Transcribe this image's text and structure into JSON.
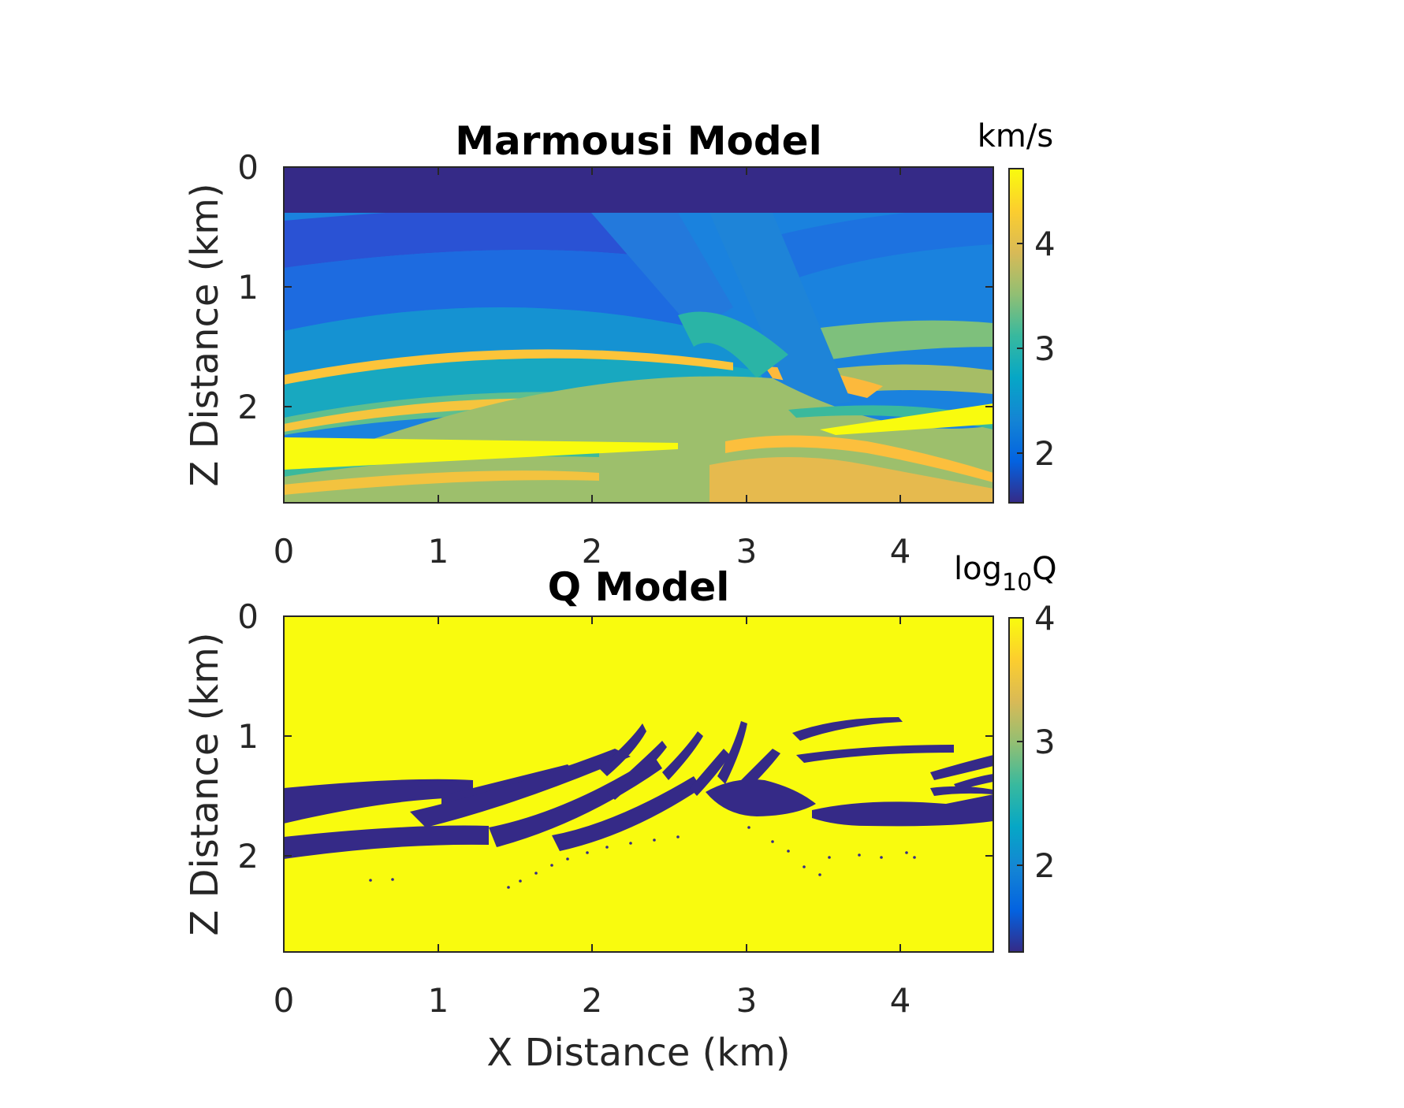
{
  "chart_data": [
    {
      "type": "heatmap",
      "title": "Marmousi Model",
      "xlabel": "",
      "ylabel": "Z Distance (km)",
      "x_ticks": [
        "0",
        "1",
        "2",
        "3",
        "4"
      ],
      "y_ticks": [
        "0",
        "1",
        "2"
      ],
      "xlim": [
        0,
        4.6
      ],
      "ylim": [
        0,
        2.8
      ],
      "y_reversed": true,
      "colormap": "parula",
      "colorbar": {
        "label": "km/s",
        "ticks": [
          "2",
          "3",
          "4"
        ],
        "range": [
          1.5,
          4.7
        ]
      },
      "features": [
        {
          "name": "water layer",
          "z_top": 0,
          "z_bottom": 0.37,
          "value": 1.5
        },
        {
          "name": "high-velocity wedge",
          "x_left": 0,
          "x_right": 2.5,
          "z_top": 2.27,
          "z_bottom": 2.52,
          "value": 4.7
        },
        {
          "name": "high-velocity wedge",
          "x_left": 3.5,
          "x_right": 4.6,
          "z_top": 2.0,
          "z_bottom": 2.2,
          "value": 4.7
        }
      ]
    },
    {
      "type": "heatmap",
      "title": "Q Model",
      "xlabel": "X Distance (km)",
      "ylabel": "Z Distance (km)",
      "x_ticks": [
        "0",
        "1",
        "2",
        "3",
        "4"
      ],
      "y_ticks": [
        "0",
        "1",
        "2"
      ],
      "xlim": [
        0,
        4.6
      ],
      "ylim": [
        0,
        2.8
      ],
      "y_reversed": true,
      "colormap": "parula",
      "colorbar": {
        "label_main": "log",
        "label_sub": "10",
        "label_tail": "Q",
        "ticks": [
          "2",
          "3",
          "4"
        ],
        "range": [
          1.3,
          4.0
        ]
      },
      "background_value": 4.0,
      "low_q_value": 1.3
    }
  ],
  "colors": {
    "axis": "#262626",
    "parula_low": "#352a87",
    "parula_high": "#f9fb0e"
  }
}
